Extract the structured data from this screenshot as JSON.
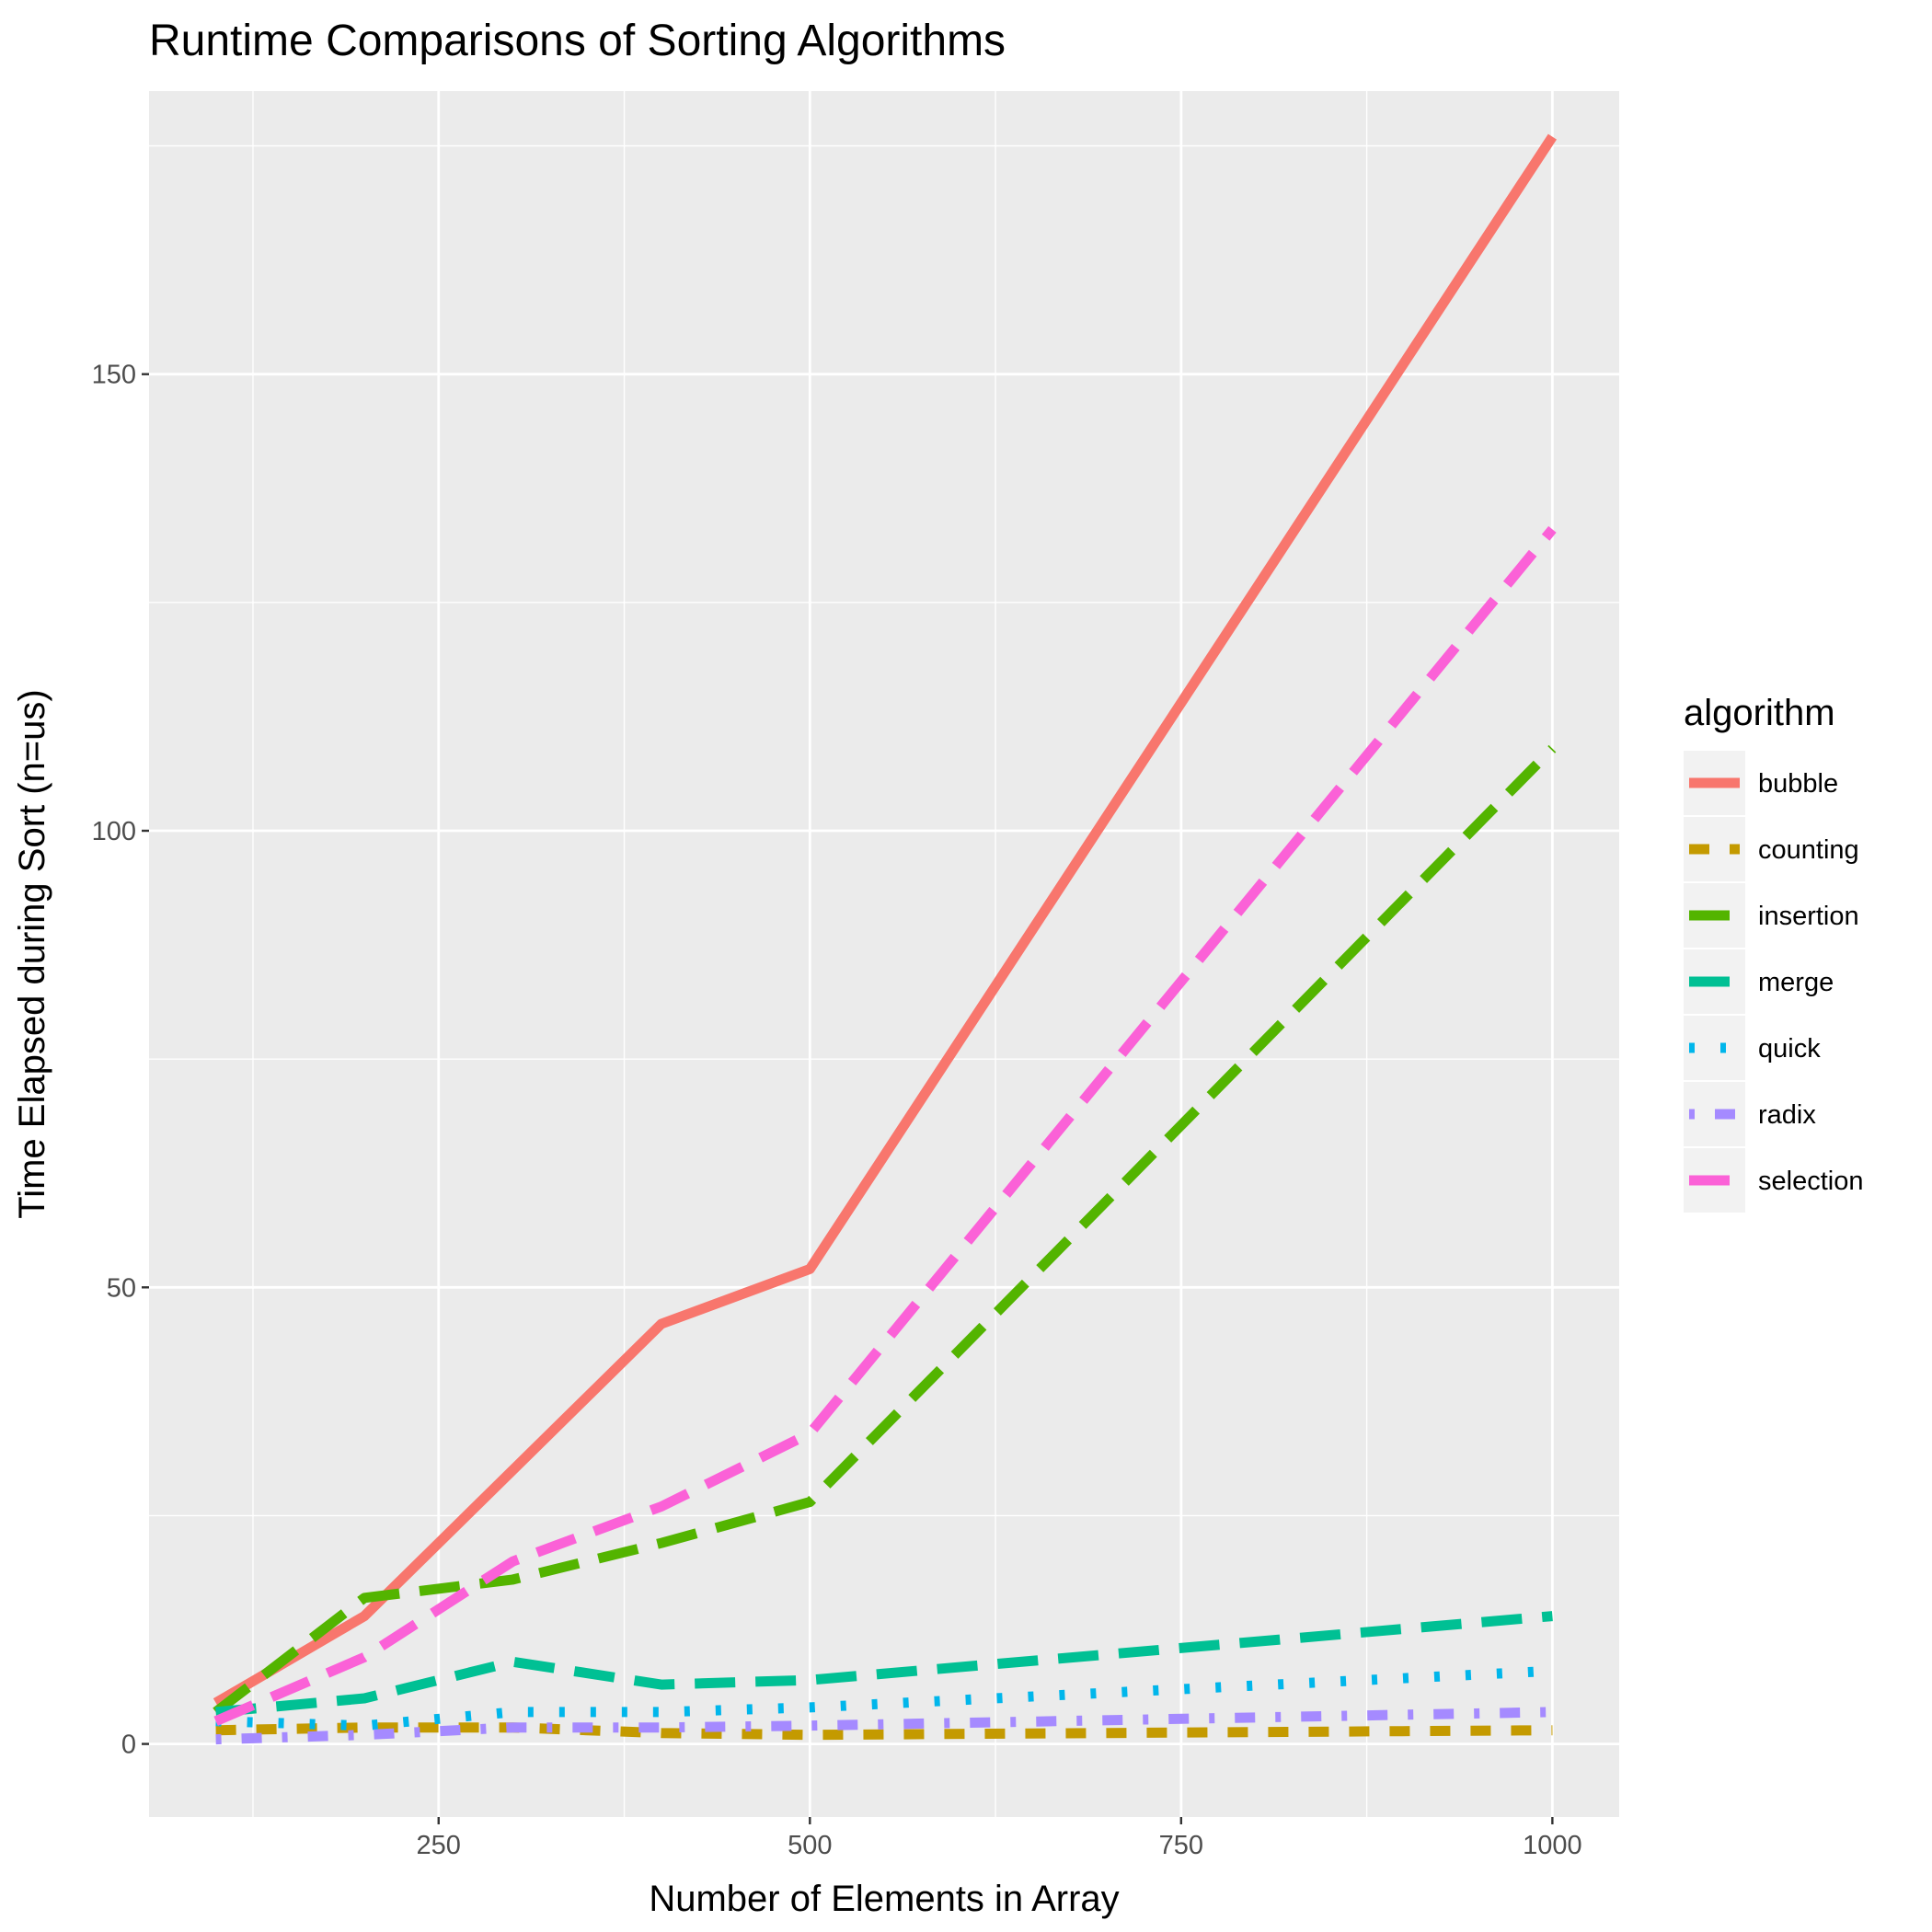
{
  "chart_data": {
    "type": "line",
    "title": "Runtime Comparisons of Sorting Algorithms",
    "xlabel": "Number of Elements in Array",
    "ylabel": "Time Elapsed during Sort (n=us)",
    "xlim": [
      55,
      1045
    ],
    "ylim": [
      -8,
      181
    ],
    "x_ticks": [
      250,
      500,
      750,
      1000
    ],
    "y_ticks": [
      0,
      50,
      100,
      150
    ],
    "grid": true,
    "legend": {
      "title": "algorithm",
      "position": "right"
    },
    "x": [
      100,
      200,
      300,
      400,
      500,
      1000
    ],
    "series": [
      {
        "name": "bubble",
        "color": "#F8766D",
        "linestyle": "solid",
        "values": [
          4.5,
          14,
          30,
          46,
          52,
          176
        ]
      },
      {
        "name": "counting",
        "color": "#C49A00",
        "linestyle": "dashed",
        "values": [
          1.5,
          1.8,
          1.8,
          1.2,
          1.0,
          1.5
        ]
      },
      {
        "name": "insertion",
        "color": "#53B400",
        "linestyle": "longdash",
        "values": [
          3.5,
          16,
          18,
          22,
          26.5,
          109
        ]
      },
      {
        "name": "merge",
        "color": "#00C094",
        "linestyle": "longdash",
        "values": [
          3.5,
          5,
          9,
          6.5,
          7,
          14
        ]
      },
      {
        "name": "quick",
        "color": "#00B6EB",
        "linestyle": "dotted",
        "values": [
          2.5,
          2,
          3.5,
          3.5,
          4,
          8
        ]
      },
      {
        "name": "radix",
        "color": "#A58AFF",
        "linestyle": "dotdash",
        "values": [
          0.5,
          1,
          1.8,
          1.8,
          2,
          3.5
        ]
      },
      {
        "name": "selection",
        "color": "#FB61D7",
        "linestyle": "longdash",
        "values": [
          2.5,
          9.5,
          20,
          26,
          34,
          133
        ]
      }
    ]
  }
}
